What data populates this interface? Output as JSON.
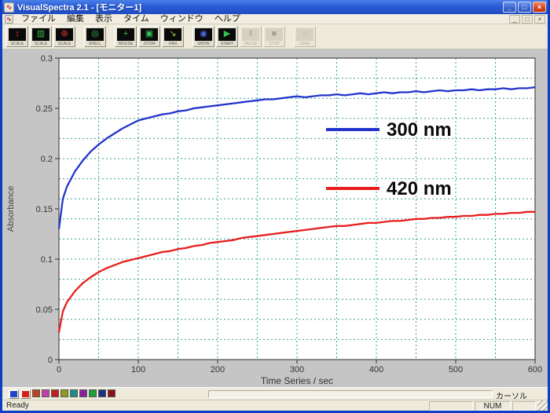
{
  "window": {
    "title": "VisualSpectra 2.1 - [モニター1]",
    "controls": {
      "minimize": "_",
      "maximize": "□",
      "close": "×"
    },
    "mdi_controls": {
      "minimize": "_",
      "restore": "□",
      "close": "×"
    }
  },
  "menu": {
    "items": [
      "ファイル",
      "編集",
      "表示",
      "タイム",
      "ウィンドウ",
      "ヘルプ"
    ]
  },
  "toolbar": {
    "buttons": [
      {
        "name": "scale-y-button",
        "label": "SCALE",
        "glyph": "↕",
        "color": "#e03030",
        "enabled": true,
        "gap": false
      },
      {
        "name": "scale-auto-button",
        "label": "SCALE",
        "glyph": "▥",
        "color": "#35c050",
        "enabled": true,
        "gap": false
      },
      {
        "name": "scale-xy-button",
        "label": "SCALE",
        "glyph": "⊕",
        "color": "#e03030",
        "enabled": true,
        "gap": false
      },
      {
        "name": "shell-button",
        "label": "SHELL",
        "glyph": "◎",
        "color": "#35c050",
        "enabled": true,
        "gap": true
      },
      {
        "name": "cursor-button",
        "label": "MOUSE",
        "glyph": "+",
        "color": "#35c050",
        "enabled": true,
        "gap": true
      },
      {
        "name": "zoom-button",
        "label": "ZOOM",
        "glyph": "▣",
        "color": "#35c050",
        "enabled": true,
        "gap": false
      },
      {
        "name": "pan-button",
        "label": "PAN",
        "glyph": "↘",
        "color": "#9fc030",
        "enabled": true,
        "gap": false
      },
      {
        "name": "show-button",
        "label": "SHOW",
        "glyph": "◉",
        "color": "#4a6ae8",
        "enabled": true,
        "gap": true
      },
      {
        "name": "start-button",
        "label": "START",
        "glyph": "▶",
        "color": "#35c050",
        "enabled": true,
        "gap": false
      },
      {
        "name": "pause-button",
        "label": "PAUSE",
        "glyph": "‖",
        "color": "#a8a494",
        "enabled": false,
        "gap": false
      },
      {
        "name": "stop-button",
        "label": "STOP",
        "glyph": "■",
        "color": "#a8a494",
        "enabled": false,
        "gap": false
      },
      {
        "name": "save-button",
        "label": "SAVE",
        "glyph": "◌",
        "color": "#a8a494",
        "enabled": false,
        "gap": true
      }
    ]
  },
  "chart_data": {
    "type": "line",
    "title": "",
    "xlabel": "Time Series / sec",
    "ylabel": "Absorbance",
    "xlim": [
      0,
      600
    ],
    "ylim": [
      0,
      0.3
    ],
    "x_ticks": [
      0,
      100,
      200,
      300,
      400,
      500,
      600
    ],
    "y_ticks": [
      0,
      0.05,
      0.1,
      0.15,
      0.2,
      0.25,
      0.3
    ],
    "y_tick_labels": [
      "0",
      "0.05",
      "0.1",
      "0.15",
      "0.2",
      "0.25",
      "0.3"
    ],
    "grid": {
      "x_step": 50,
      "y_step": 0.02,
      "style": "dashed",
      "color": "#35a093"
    },
    "legend": {
      "position": "inside-right",
      "entries": [
        {
          "label": "300 nm",
          "color": "#2334cc"
        },
        {
          "label": "420 nm",
          "color": "#e81e1e"
        }
      ]
    },
    "x": [
      0,
      5,
      10,
      20,
      30,
      40,
      50,
      60,
      70,
      80,
      90,
      100,
      110,
      120,
      130,
      140,
      150,
      160,
      170,
      180,
      190,
      200,
      210,
      220,
      230,
      240,
      250,
      260,
      270,
      280,
      290,
      300,
      310,
      320,
      330,
      340,
      350,
      360,
      370,
      380,
      390,
      400,
      410,
      420,
      430,
      440,
      450,
      460,
      470,
      480,
      490,
      500,
      510,
      520,
      530,
      540,
      550,
      560,
      570,
      580,
      590,
      600
    ],
    "series": [
      {
        "name": "300 nm",
        "color": "#2334cc",
        "values": [
          0.13,
          0.16,
          0.172,
          0.187,
          0.198,
          0.207,
          0.214,
          0.22,
          0.225,
          0.23,
          0.234,
          0.238,
          0.24,
          0.242,
          0.244,
          0.245,
          0.247,
          0.248,
          0.25,
          0.251,
          0.252,
          0.253,
          0.254,
          0.255,
          0.256,
          0.257,
          0.258,
          0.259,
          0.259,
          0.26,
          0.261,
          0.262,
          0.261,
          0.262,
          0.263,
          0.263,
          0.264,
          0.263,
          0.264,
          0.265,
          0.264,
          0.265,
          0.266,
          0.265,
          0.266,
          0.266,
          0.267,
          0.266,
          0.267,
          0.268,
          0.267,
          0.268,
          0.268,
          0.269,
          0.268,
          0.269,
          0.269,
          0.27,
          0.269,
          0.27,
          0.27,
          0.271
        ]
      },
      {
        "name": "420 nm",
        "color": "#e81e1e",
        "values": [
          0.027,
          0.048,
          0.057,
          0.068,
          0.076,
          0.082,
          0.087,
          0.091,
          0.094,
          0.097,
          0.099,
          0.101,
          0.103,
          0.105,
          0.107,
          0.108,
          0.11,
          0.111,
          0.113,
          0.114,
          0.116,
          0.117,
          0.118,
          0.119,
          0.121,
          0.122,
          0.123,
          0.124,
          0.125,
          0.126,
          0.127,
          0.128,
          0.129,
          0.13,
          0.131,
          0.132,
          0.133,
          0.133,
          0.134,
          0.135,
          0.136,
          0.136,
          0.137,
          0.138,
          0.138,
          0.139,
          0.14,
          0.14,
          0.141,
          0.141,
          0.142,
          0.142,
          0.143,
          0.143,
          0.144,
          0.144,
          0.145,
          0.145,
          0.146,
          0.146,
          0.147,
          0.147
        ]
      }
    ]
  },
  "palette": {
    "swatches": [
      "#2543c8",
      "#d42020",
      "#bb4422",
      "#bf3fa6",
      "#c01f1f",
      "#8f9a1f",
      "#1f8f86",
      "#8a1f9e",
      "#1f9e3a",
      "#20307e",
      "#8c1016"
    ],
    "active_count": 2
  },
  "lane": {
    "cursor_label": "カーソル"
  },
  "statusbar": {
    "ready": "Ready",
    "num": "NUM"
  }
}
